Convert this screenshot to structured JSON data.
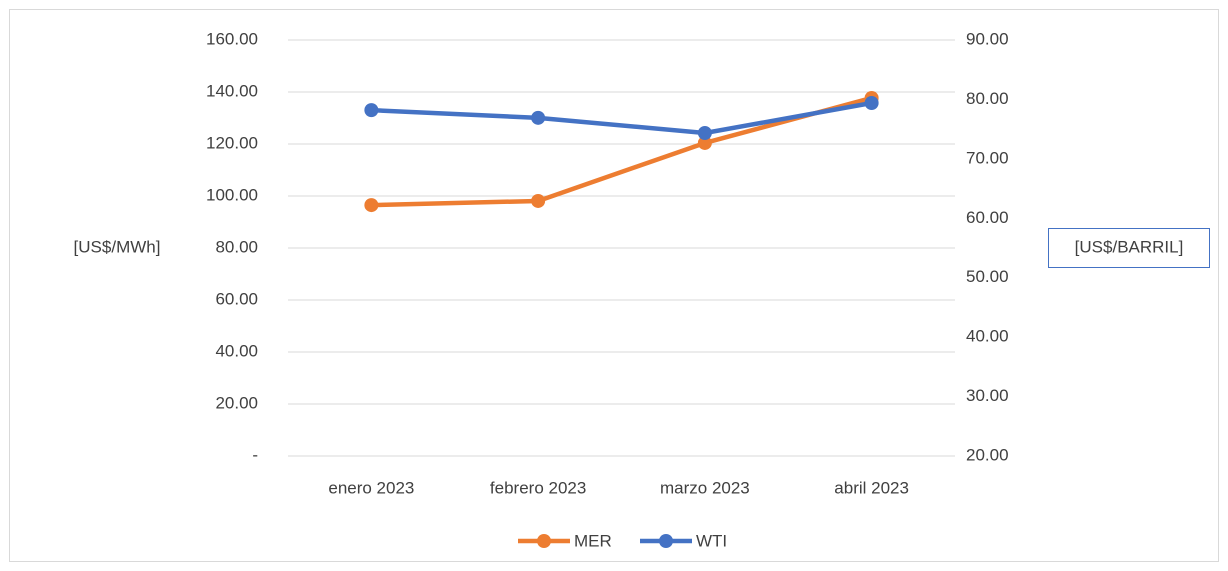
{
  "chart_data": {
    "type": "line",
    "categories": [
      "enero 2023",
      "febrero 2023",
      "marzo 2023",
      "abril 2023"
    ],
    "series": [
      {
        "name": "MER",
        "color": "#ED7D31",
        "values": [
          96.5,
          98.1,
          120.4,
          137.7
        ],
        "axis": "y"
      },
      {
        "name": "WTI",
        "color": "#4472C4",
        "values": [
          78.2,
          76.9,
          74.35,
          79.4
        ],
        "axis": "y2"
      }
    ],
    "ylabel": "[US$/MWh]",
    "y2label": "[US$/BARRIL]",
    "ylim": [
      0,
      160
    ],
    "yticks": [
      {
        "value": 0,
        "label": "-"
      },
      {
        "value": 20,
        "label": "20.00"
      },
      {
        "value": 40,
        "label": "40.00"
      },
      {
        "value": 60,
        "label": "60.00"
      },
      {
        "value": 80,
        "label": "80.00"
      },
      {
        "value": 100,
        "label": "100.00"
      },
      {
        "value": 120,
        "label": "120.00"
      },
      {
        "value": 140,
        "label": "140.00"
      },
      {
        "value": 160,
        "label": "160.00"
      }
    ],
    "y2lim": [
      20,
      90
    ],
    "y2ticks": [
      {
        "value": 20,
        "label": "20.00"
      },
      {
        "value": 30,
        "label": "30.00"
      },
      {
        "value": 40,
        "label": "40.00"
      },
      {
        "value": 50,
        "label": "50.00"
      },
      {
        "value": 60,
        "label": "60.00"
      },
      {
        "value": 70,
        "label": "70.00"
      },
      {
        "value": 80,
        "label": "80.00"
      },
      {
        "value": 90,
        "label": "90.00"
      }
    ],
    "grid": true,
    "legend": "bottom"
  }
}
